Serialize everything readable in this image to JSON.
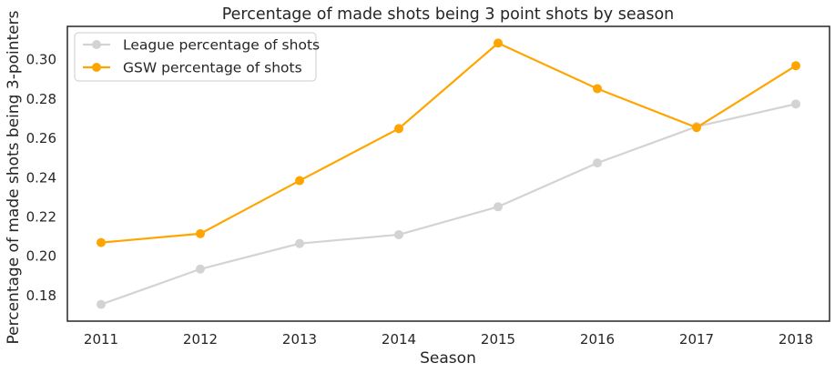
{
  "chart_data": {
    "type": "line",
    "title": "Percentage of made shots being 3 point shots by season",
    "xlabel": "Season",
    "ylabel": "Percentage of made shots being 3-pointers",
    "x": [
      "2011",
      "2012",
      "2013",
      "2014",
      "2015",
      "2016",
      "2017",
      "2018"
    ],
    "yticks": [
      "0.18",
      "0.20",
      "0.22",
      "0.24",
      "0.26",
      "0.28",
      "0.30"
    ],
    "ylim": [
      0.167,
      0.317
    ],
    "grid": false,
    "legend_position": "top-left",
    "series": [
      {
        "name": "League percentage of shots",
        "color": "#d3d3d3",
        "values": [
          0.1755,
          0.1935,
          0.2065,
          0.211,
          0.2252,
          0.2475,
          0.266,
          0.2775
        ]
      },
      {
        "name": "GSW percentage of shots",
        "color": "#ffa500",
        "values": [
          0.207,
          0.2115,
          0.2385,
          0.265,
          0.3085,
          0.2853,
          0.2655,
          0.297
        ]
      }
    ]
  }
}
